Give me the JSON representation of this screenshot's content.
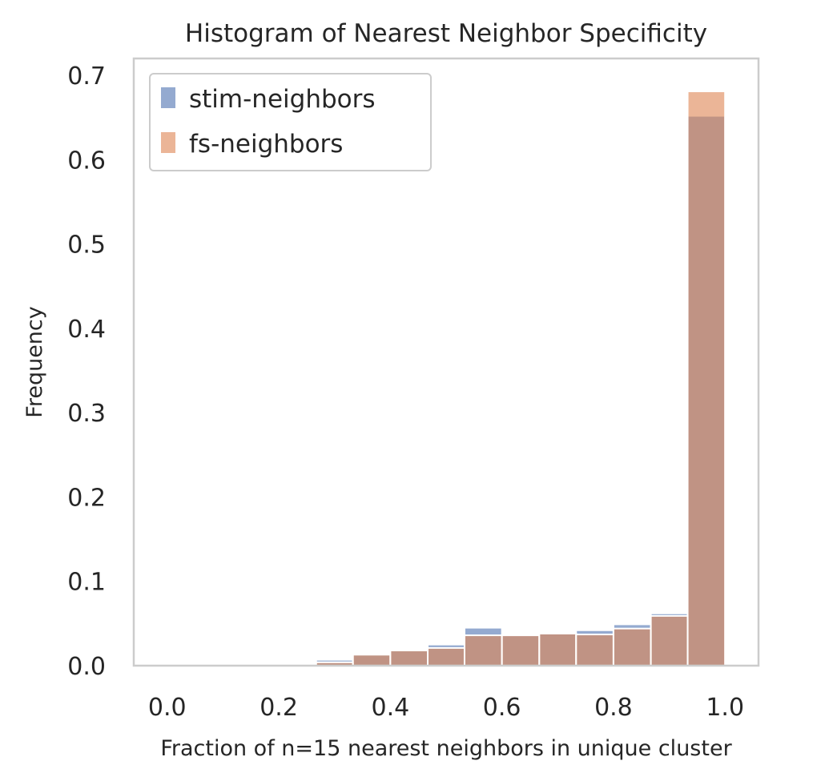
{
  "chart_data": {
    "type": "bar",
    "title": "Histogram of Nearest Neighbor Specificity",
    "xlabel": "Fraction of n=15 nearest neighbors in unique cluster",
    "ylabel": "Frequency",
    "xlim": [
      -0.06,
      1.06
    ],
    "ylim": [
      0,
      0.72
    ],
    "xticks": [
      "0.0",
      "0.2",
      "0.4",
      "0.6",
      "0.8",
      "1.0"
    ],
    "yticks": [
      "0.0",
      "0.1",
      "0.2",
      "0.3",
      "0.4",
      "0.5",
      "0.6",
      "0.7"
    ],
    "grid": false,
    "legend_position": "top-left",
    "bin_edges": [
      0.267,
      0.333,
      0.4,
      0.467,
      0.533,
      0.6,
      0.667,
      0.733,
      0.8,
      0.867,
      0.933,
      1.0
    ],
    "series": [
      {
        "name": "stim-neighbors",
        "color": "#4c72b0",
        "values": [
          0.007,
          0.014,
          0.018,
          0.025,
          0.045,
          0.036,
          0.038,
          0.042,
          0.049,
          0.062,
          0.652
        ]
      },
      {
        "name": "fs-neighbors",
        "color": "#dd8452",
        "values": [
          0.004,
          0.013,
          0.018,
          0.021,
          0.036,
          0.036,
          0.038,
          0.037,
          0.044,
          0.059,
          0.681
        ]
      }
    ]
  }
}
